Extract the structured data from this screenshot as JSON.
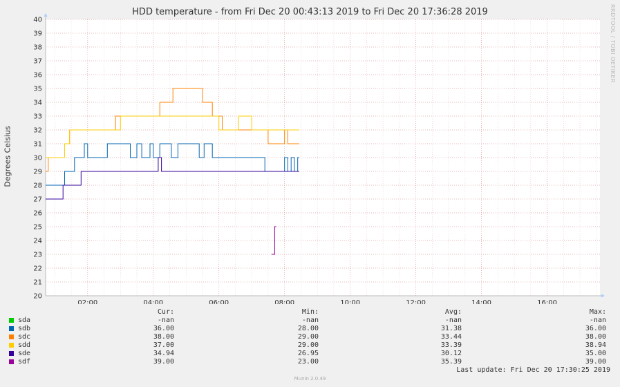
{
  "title": "HDD temperature - from Fri Dec 20 00:43:13 2019 to Fri Dec 20 17:36:28 2019",
  "side_text": "RRDTOOL / TOBI OETIKER",
  "chart_data": {
    "type": "line",
    "title": "HDD temperature - from Fri Dec 20 00:43:13 2019 to Fri Dec 20 17:36:28 2019",
    "ylabel": "Degrees Celsius",
    "ylim": [
      20,
      40
    ],
    "yticks": [
      20,
      21,
      22,
      23,
      24,
      25,
      26,
      27,
      28,
      29,
      30,
      31,
      32,
      33,
      34,
      35,
      36,
      37,
      38,
      39,
      40
    ],
    "xlim": [
      0.72,
      17.61
    ],
    "xticks": [
      2,
      4,
      6,
      8,
      10,
      12,
      14,
      16
    ],
    "xtick_labels": [
      "02:00",
      "04:00",
      "06:00",
      "08:00",
      "10:00",
      "12:00",
      "14:00",
      "16:00"
    ],
    "grid": true,
    "series": [
      {
        "name": "sda",
        "color": "#00cc00",
        "points": []
      },
      {
        "name": "sdb",
        "color": "#0066b3",
        "points": [
          [
            0.72,
            28
          ],
          [
            1.3,
            28
          ],
          [
            1.3,
            29
          ],
          [
            1.6,
            29
          ],
          [
            1.6,
            30
          ],
          [
            1.9,
            30
          ],
          [
            1.9,
            31
          ],
          [
            2.0,
            31
          ],
          [
            2.0,
            30
          ],
          [
            2.6,
            30
          ],
          [
            2.6,
            31
          ],
          [
            3.3,
            31
          ],
          [
            3.3,
            30
          ],
          [
            3.5,
            30
          ],
          [
            3.5,
            31
          ],
          [
            3.65,
            31
          ],
          [
            3.65,
            30
          ],
          [
            3.9,
            30
          ],
          [
            3.9,
            31
          ],
          [
            4.0,
            31
          ],
          [
            4.0,
            30
          ],
          [
            4.2,
            30
          ],
          [
            4.2,
            31
          ],
          [
            4.55,
            31
          ],
          [
            4.55,
            30
          ],
          [
            4.75,
            30
          ],
          [
            4.75,
            31
          ],
          [
            5.4,
            31
          ],
          [
            5.4,
            30
          ],
          [
            5.55,
            30
          ],
          [
            5.55,
            31
          ],
          [
            5.8,
            31
          ],
          [
            5.8,
            30
          ],
          [
            7.4,
            30
          ],
          [
            7.4,
            29
          ],
          [
            8.0,
            29
          ],
          [
            8.0,
            30
          ],
          [
            8.1,
            30
          ],
          [
            8.1,
            29
          ],
          [
            8.2,
            29
          ],
          [
            8.2,
            30
          ],
          [
            8.3,
            30
          ],
          [
            8.3,
            29
          ],
          [
            8.4,
            29
          ],
          [
            8.4,
            30
          ],
          [
            8.45,
            30
          ]
        ]
      },
      {
        "name": "sdc",
        "color": "#ff8000",
        "points": [
          [
            0.72,
            29
          ],
          [
            0.8,
            29
          ],
          [
            0.8,
            30
          ],
          [
            1.3,
            30
          ],
          [
            1.3,
            31
          ],
          [
            1.45,
            31
          ],
          [
            1.45,
            32
          ],
          [
            2.0,
            32
          ],
          [
            2.0,
            32
          ],
          [
            2.85,
            32
          ],
          [
            2.85,
            33
          ],
          [
            4.2,
            33
          ],
          [
            4.2,
            34
          ],
          [
            4.6,
            34
          ],
          [
            4.6,
            35
          ],
          [
            5.5,
            35
          ],
          [
            5.5,
            34
          ],
          [
            5.8,
            34
          ],
          [
            5.8,
            33
          ],
          [
            6.1,
            33
          ],
          [
            6.1,
            32
          ],
          [
            7.5,
            32
          ],
          [
            7.5,
            31
          ],
          [
            8.0,
            31
          ],
          [
            8.0,
            32
          ],
          [
            8.1,
            32
          ],
          [
            8.1,
            31
          ],
          [
            8.45,
            31
          ]
        ]
      },
      {
        "name": "sdd",
        "color": "#ffcc00",
        "points": [
          [
            0.72,
            30
          ],
          [
            1.3,
            30
          ],
          [
            1.3,
            31
          ],
          [
            1.45,
            31
          ],
          [
            1.45,
            32
          ],
          [
            3.0,
            32
          ],
          [
            3.0,
            33
          ],
          [
            6.0,
            33
          ],
          [
            6.0,
            32
          ],
          [
            6.6,
            32
          ],
          [
            6.6,
            33
          ],
          [
            7.0,
            33
          ],
          [
            7.0,
            32
          ],
          [
            8.45,
            32
          ]
        ]
      },
      {
        "name": "sde",
        "color": "#330099",
        "points": [
          [
            0.72,
            27
          ],
          [
            1.25,
            27
          ],
          [
            1.25,
            28
          ],
          [
            1.8,
            28
          ],
          [
            1.8,
            29
          ],
          [
            4.15,
            29
          ],
          [
            4.15,
            30
          ],
          [
            4.25,
            30
          ],
          [
            4.25,
            29
          ],
          [
            8.45,
            29
          ]
        ]
      },
      {
        "name": "sdf",
        "color": "#990099",
        "points": [
          [
            7.6,
            23
          ],
          [
            7.7,
            23
          ],
          [
            7.7,
            25
          ],
          [
            7.75,
            25
          ]
        ]
      }
    ],
    "legend_headers": [
      "Cur:",
      "Min:",
      "Avg:",
      "Max:"
    ],
    "legend": [
      {
        "name": "sda",
        "color": "#00cc00",
        "cur": "-nan",
        "min": "-nan",
        "avg": "-nan",
        "max": "-nan"
      },
      {
        "name": "sdb",
        "color": "#0066b3",
        "cur": "36.00",
        "min": "28.00",
        "avg": "31.38",
        "max": "36.00"
      },
      {
        "name": "sdc",
        "color": "#ff8000",
        "cur": "38.00",
        "min": "29.00",
        "avg": "33.44",
        "max": "38.00"
      },
      {
        "name": "sdd",
        "color": "#ffcc00",
        "cur": "37.00",
        "min": "29.00",
        "avg": "33.39",
        "max": "38.94"
      },
      {
        "name": "sde",
        "color": "#330099",
        "cur": "34.94",
        "min": "26.95",
        "avg": "30.12",
        "max": "35.00"
      },
      {
        "name": "sdf",
        "color": "#990099",
        "cur": "39.00",
        "min": "23.00",
        "avg": "35.39",
        "max": "39.00"
      }
    ]
  },
  "last_update": "Last update: Fri Dec 20 17:30:25 2019",
  "footer": "Munin 2.0.49"
}
